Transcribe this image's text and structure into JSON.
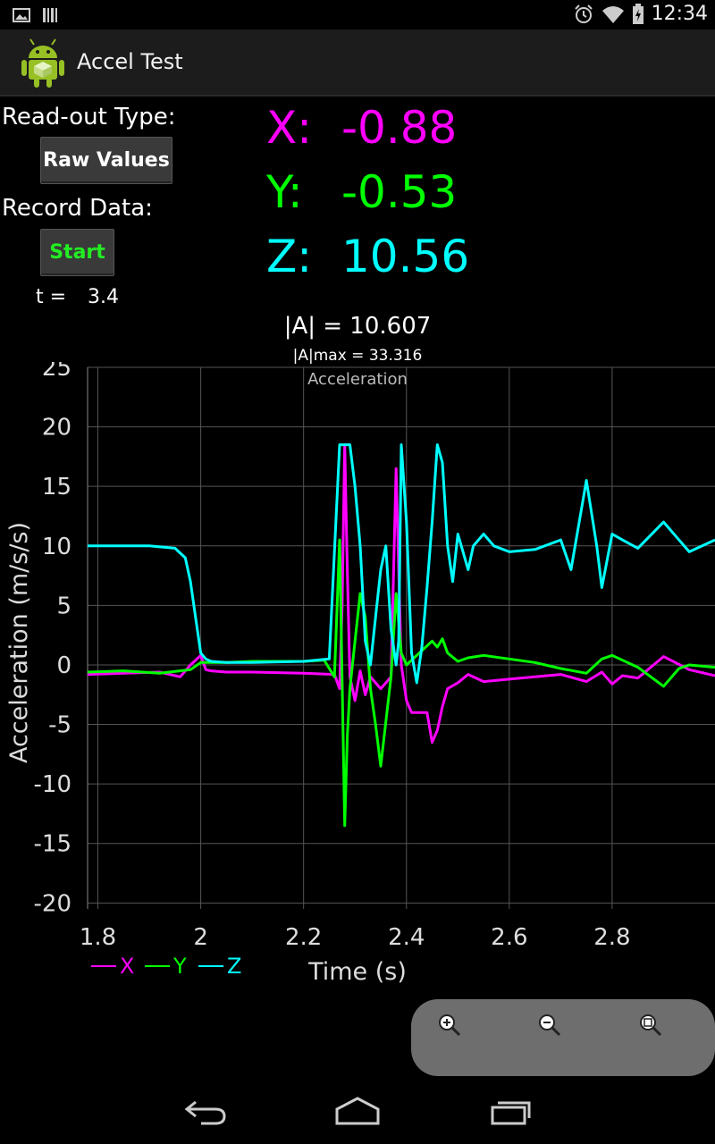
{
  "status_bar": {
    "time": "12:34"
  },
  "app": {
    "title": "Accel Test"
  },
  "controls": {
    "readout_type_label": "Read-out Type:",
    "readout_type_button": "Raw Values",
    "record_label": "Record Data:",
    "record_button": "Start",
    "t_label": "t =",
    "t_value": "3.4"
  },
  "readouts": {
    "x_label": "X:",
    "x_value": "-0.88",
    "y_label": "Y:",
    "y_value": "-0.53",
    "z_label": "Z:",
    "z_value": "10.56",
    "magnitude": "|A| = 10.607",
    "magnitude_max": "|A|max = 33.316"
  },
  "colors": {
    "x": "#ff00ff",
    "y": "#00ff00",
    "z": "#00ffff",
    "start_button": "#22ee22"
  },
  "chart_data": {
    "type": "line",
    "title": "Acceleration",
    "xlabel": "Time (s)",
    "ylabel": "Acceleration (m/s/s)",
    "xlim": [
      1.78,
      3.0
    ],
    "ylim": [
      -20.5,
      25
    ],
    "x_ticks": [
      1.8,
      2.0,
      2.2,
      2.4,
      2.6,
      2.8
    ],
    "x_tick_labels": [
      "1.8",
      "2",
      "2.2",
      "2.4",
      "2.6",
      "2.8"
    ],
    "y_ticks": [
      -20,
      -15,
      -10,
      -5,
      0,
      5,
      10,
      15,
      20,
      25
    ],
    "y_tick_labels": [
      "-20",
      "-15",
      "-10",
      "-5",
      "0",
      "5",
      "10",
      "15",
      "20",
      "25"
    ],
    "grid": true,
    "legend": "bottom-left",
    "series": [
      {
        "name": "X",
        "color": "#ff00ff",
        "x": [
          1.78,
          1.85,
          1.92,
          1.96,
          1.98,
          2.0,
          2.01,
          2.02,
          2.05,
          2.1,
          2.2,
          2.26,
          2.27,
          2.275,
          2.28,
          2.285,
          2.29,
          2.3,
          2.31,
          2.32,
          2.33,
          2.35,
          2.37,
          2.38,
          2.385,
          2.39,
          2.4,
          2.41,
          2.44,
          2.45,
          2.46,
          2.47,
          2.48,
          2.5,
          2.52,
          2.55,
          2.6,
          2.7,
          2.75,
          2.78,
          2.8,
          2.82,
          2.85,
          2.9,
          2.95,
          3.0
        ],
        "y": [
          -0.8,
          -0.7,
          -0.6,
          -1.0,
          0.0,
          0.8,
          -0.4,
          -0.5,
          -0.6,
          -0.6,
          -0.7,
          -0.8,
          -2.0,
          5.0,
          18.5,
          8.0,
          -1.0,
          -3.0,
          -0.5,
          -2.5,
          -1.0,
          -2.0,
          -1.0,
          16.5,
          8.0,
          0.0,
          -3.0,
          -4.0,
          -4.0,
          -6.5,
          -5.5,
          -3.5,
          -2.0,
          -1.5,
          -0.8,
          -1.4,
          -1.2,
          -0.8,
          -1.4,
          -0.6,
          -1.6,
          -0.9,
          -1.1,
          0.7,
          -0.4,
          -0.9
        ]
      },
      {
        "name": "Y",
        "color": "#00ff00",
        "x": [
          1.78,
          1.85,
          1.92,
          1.98,
          2.0,
          2.05,
          2.1,
          2.2,
          2.24,
          2.26,
          2.27,
          2.28,
          2.285,
          2.29,
          2.3,
          2.31,
          2.32,
          2.33,
          2.34,
          2.35,
          2.37,
          2.38,
          2.39,
          2.4,
          2.42,
          2.45,
          2.46,
          2.47,
          2.48,
          2.5,
          2.52,
          2.55,
          2.6,
          2.65,
          2.7,
          2.75,
          2.78,
          2.8,
          2.85,
          2.9,
          2.93,
          2.95,
          3.0
        ],
        "y": [
          -0.6,
          -0.5,
          -0.7,
          -0.4,
          0.2,
          0.2,
          0.3,
          0.3,
          0.4,
          -1.0,
          10.5,
          -13.5,
          -6.0,
          -2.0,
          2.0,
          6.0,
          4.0,
          -2.0,
          -5.0,
          -8.5,
          -1.0,
          6.0,
          1.0,
          0.0,
          0.8,
          2.0,
          1.5,
          2.2,
          1.0,
          0.3,
          0.6,
          0.8,
          0.5,
          0.2,
          -0.3,
          -0.7,
          0.5,
          0.8,
          -0.2,
          -1.8,
          -0.3,
          0.0,
          -0.2
        ]
      },
      {
        "name": "Z",
        "color": "#00ffff",
        "x": [
          1.78,
          1.85,
          1.9,
          1.95,
          1.97,
          1.98,
          1.99,
          2.0,
          2.01,
          2.02,
          2.05,
          2.1,
          2.2,
          2.25,
          2.27,
          2.28,
          2.29,
          2.3,
          2.31,
          2.32,
          2.33,
          2.34,
          2.35,
          2.36,
          2.37,
          2.38,
          2.385,
          2.39,
          2.4,
          2.41,
          2.42,
          2.43,
          2.44,
          2.45,
          2.46,
          2.47,
          2.48,
          2.49,
          2.5,
          2.52,
          2.53,
          2.55,
          2.57,
          2.6,
          2.65,
          2.7,
          2.72,
          2.75,
          2.77,
          2.78,
          2.8,
          2.82,
          2.85,
          2.9,
          2.95,
          3.0
        ],
        "y": [
          10.0,
          10.0,
          10.0,
          9.8,
          9.0,
          7.0,
          4.0,
          1.0,
          0.5,
          0.3,
          0.2,
          0.2,
          0.3,
          0.5,
          18.5,
          18.5,
          18.5,
          15.0,
          10.0,
          2.0,
          0.0,
          4.0,
          8.0,
          10.0,
          3.0,
          0.0,
          2.0,
          18.5,
          12.0,
          1.0,
          -1.5,
          1.5,
          6.5,
          12.0,
          18.5,
          17.0,
          10.0,
          7.0,
          11.0,
          8.0,
          10.0,
          11.0,
          10.0,
          9.5,
          9.7,
          10.5,
          8.0,
          15.5,
          10.0,
          6.5,
          11.0,
          10.5,
          9.8,
          12.0,
          9.5,
          10.5
        ]
      }
    ]
  }
}
